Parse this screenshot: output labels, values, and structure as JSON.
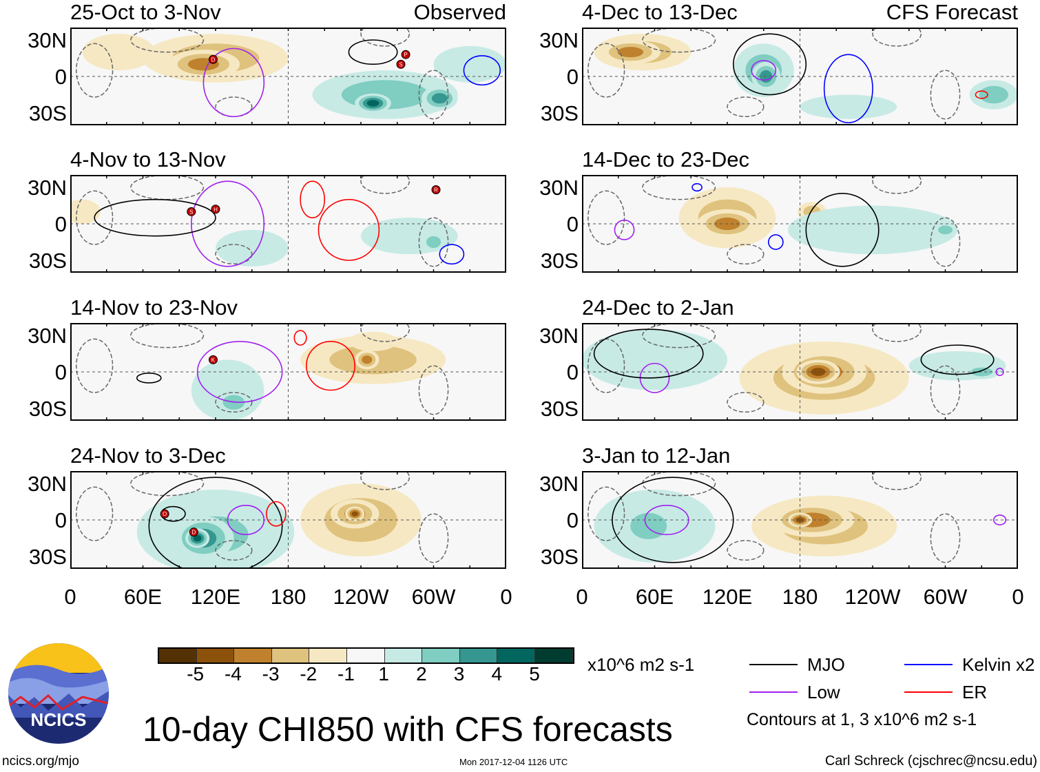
{
  "title": "10-day CHI850 with CFS forecasts",
  "units": "x10^6 m2 s-1",
  "footer": {
    "left": "ncics.org/mjo",
    "center": "Mon 2017-12-04 1126 UTC",
    "right": "Carl Schreck (cjschrec@ncsu.edu)"
  },
  "logo_text": "NCICS",
  "colorbar": {
    "labels": [
      "-5",
      "-4",
      "-3",
      "-2",
      "-1",
      "1",
      "2",
      "3",
      "4",
      "5"
    ],
    "colors": [
      "#543005",
      "#8c510a",
      "#bf812d",
      "#dfc27d",
      "#f6e8c3",
      "#f7f7f7",
      "#c7eae5",
      "#80cdc1",
      "#35978f",
      "#01665e",
      "#003c30"
    ]
  },
  "legend": {
    "items": [
      {
        "label": "MJO",
        "color": "#000000"
      },
      {
        "label": "Kelvin x2",
        "color": "#0000ff"
      },
      {
        "label": "Low",
        "color": "#a020f0"
      },
      {
        "label": "ER",
        "color": "#ff0000"
      }
    ],
    "note": "Contours at 1, 3 x10^6 m2 s-1"
  },
  "axes": {
    "y_ticks": [
      "30N",
      "0",
      "30S"
    ],
    "x_ticks": [
      "0",
      "60E",
      "120E",
      "180",
      "120W",
      "60W",
      "0"
    ]
  },
  "panels": [
    {
      "title": "25-Oct to 3-Nov",
      "label": "Observed",
      "anoms": [
        [
          120,
          15,
          60,
          20,
          -2
        ],
        [
          110,
          10,
          30,
          12,
          -3
        ],
        [
          40,
          20,
          30,
          15,
          -1
        ],
        [
          260,
          -15,
          60,
          20,
          2
        ],
        [
          250,
          -22,
          15,
          8,
          4
        ],
        [
          305,
          -18,
          15,
          10,
          3
        ],
        [
          330,
          10,
          30,
          15,
          1
        ]
      ],
      "contours": [
        [
          135,
          -5,
          25,
          28,
          "#a020f0"
        ],
        [
          250,
          20,
          20,
          10,
          "#000000"
        ],
        [
          340,
          5,
          15,
          12,
          "#0000ff"
        ]
      ],
      "storms": [
        [
          118,
          14,
          "D"
        ],
        [
          277,
          18,
          "P"
        ],
        [
          273,
          10,
          "S"
        ]
      ]
    },
    {
      "title": "4-Dec to 13-Dec",
      "label": "CFS Forecast",
      "anoms": [
        [
          50,
          20,
          40,
          15,
          -2
        ],
        [
          40,
          20,
          25,
          10,
          -3
        ],
        [
          150,
          5,
          25,
          22,
          2
        ],
        [
          152,
          0,
          12,
          12,
          3
        ],
        [
          220,
          -25,
          40,
          10,
          1
        ],
        [
          340,
          -15,
          20,
          12,
          2
        ]
      ],
      "contours": [
        [
          155,
          10,
          30,
          25,
          "#000000"
        ],
        [
          150,
          5,
          10,
          8,
          "#a020f0"
        ],
        [
          220,
          -10,
          20,
          28,
          "#0000ff"
        ],
        [
          330,
          -15,
          5,
          3,
          "#ff0000"
        ]
      ],
      "storms": []
    },
    {
      "title": "4-Nov to 13-Nov",
      "label": "",
      "anoms": [
        [
          10,
          10,
          15,
          10,
          -1
        ],
        [
          150,
          -20,
          30,
          15,
          1
        ],
        [
          280,
          -10,
          40,
          15,
          1
        ],
        [
          300,
          -15,
          10,
          8,
          2
        ]
      ],
      "contours": [
        [
          130,
          0,
          30,
          35,
          "#a020f0"
        ],
        [
          70,
          5,
          50,
          15,
          "#000000"
        ],
        [
          200,
          20,
          10,
          15,
          "#ff0000"
        ],
        [
          230,
          -5,
          25,
          25,
          "#ff0000"
        ],
        [
          315,
          -25,
          10,
          8,
          "#0000ff"
        ]
      ],
      "storms": [
        [
          100,
          10,
          "S"
        ],
        [
          120,
          12,
          "H"
        ],
        [
          302,
          28,
          "R"
        ]
      ]
    },
    {
      "title": "14-Dec to 23-Dec",
      "label": "",
      "anoms": [
        [
          120,
          5,
          40,
          25,
          -2
        ],
        [
          120,
          0,
          25,
          12,
          -3
        ],
        [
          190,
          10,
          12,
          8,
          -2
        ],
        [
          240,
          -5,
          70,
          20,
          1
        ],
        [
          300,
          -5,
          10,
          6,
          2
        ]
      ],
      "contours": [
        [
          35,
          -5,
          8,
          8,
          "#a020f0"
        ],
        [
          160,
          -15,
          6,
          6,
          "#0000ff"
        ],
        [
          215,
          -5,
          30,
          30,
          "#000000"
        ],
        [
          95,
          30,
          4,
          3,
          "#0000ff"
        ]
      ],
      "storms": []
    },
    {
      "title": "14-Nov to 23-Nov",
      "label": "",
      "anoms": [
        [
          130,
          -15,
          30,
          25,
          1
        ],
        [
          135,
          -25,
          15,
          10,
          2
        ],
        [
          250,
          10,
          60,
          20,
          -2
        ],
        [
          245,
          10,
          10,
          8,
          -3
        ],
        [
          250,
          25,
          20,
          8,
          -1
        ]
      ],
      "contours": [
        [
          140,
          0,
          35,
          25,
          "#a020f0"
        ],
        [
          215,
          5,
          20,
          20,
          "#ff0000"
        ],
        [
          190,
          28,
          5,
          6,
          "#ff0000"
        ],
        [
          65,
          -5,
          10,
          4,
          "#000000"
        ]
      ],
      "storms": [
        [
          118,
          10,
          "K"
        ]
      ]
    },
    {
      "title": "24-Dec to 2-Jan",
      "label": "",
      "anoms": [
        [
          200,
          -5,
          70,
          30,
          -2
        ],
        [
          200,
          0,
          35,
          18,
          -3
        ],
        [
          195,
          0,
          18,
          10,
          -4
        ],
        [
          60,
          10,
          60,
          25,
          1
        ],
        [
          310,
          5,
          40,
          12,
          1
        ],
        [
          330,
          0,
          15,
          6,
          2
        ]
      ],
      "contours": [
        [
          60,
          -5,
          12,
          12,
          "#a020f0"
        ],
        [
          55,
          15,
          45,
          20,
          "#000000"
        ],
        [
          310,
          10,
          30,
          12,
          "#000000"
        ],
        [
          345,
          0,
          3,
          3,
          "#a020f0"
        ]
      ],
      "storms": []
    },
    {
      "title": "24-Nov to 3-Dec",
      "label": "",
      "anoms": [
        [
          120,
          -10,
          65,
          35,
          1
        ],
        [
          120,
          -12,
          45,
          25,
          2
        ],
        [
          110,
          -15,
          25,
          18,
          3
        ],
        [
          105,
          -15,
          10,
          8,
          4
        ],
        [
          240,
          0,
          50,
          30,
          -2
        ],
        [
          235,
          5,
          20,
          12,
          -3
        ],
        [
          235,
          5,
          8,
          6,
          -4
        ]
      ],
      "contours": [
        [
          120,
          -5,
          55,
          40,
          "#000000"
        ],
        [
          145,
          0,
          15,
          12,
          "#a020f0"
        ],
        [
          170,
          5,
          8,
          10,
          "#ff0000"
        ],
        [
          85,
          5,
          10,
          6,
          "#000000"
        ]
      ],
      "storms": [
        [
          78,
          5,
          "O"
        ],
        [
          102,
          -10,
          "D"
        ]
      ]
    },
    {
      "title": "3-Jan to 12-Jan",
      "label": "",
      "anoms": [
        [
          60,
          -5,
          50,
          30,
          1
        ],
        [
          55,
          -5,
          25,
          18,
          2
        ],
        [
          200,
          -5,
          60,
          25,
          -2
        ],
        [
          190,
          0,
          35,
          14,
          -3
        ],
        [
          180,
          0,
          10,
          6,
          -4
        ]
      ],
      "contours": [
        [
          75,
          0,
          50,
          35,
          "#000000"
        ],
        [
          70,
          0,
          18,
          12,
          "#a020f0"
        ],
        [
          345,
          0,
          5,
          4,
          "#a020f0"
        ]
      ],
      "storms": []
    }
  ]
}
